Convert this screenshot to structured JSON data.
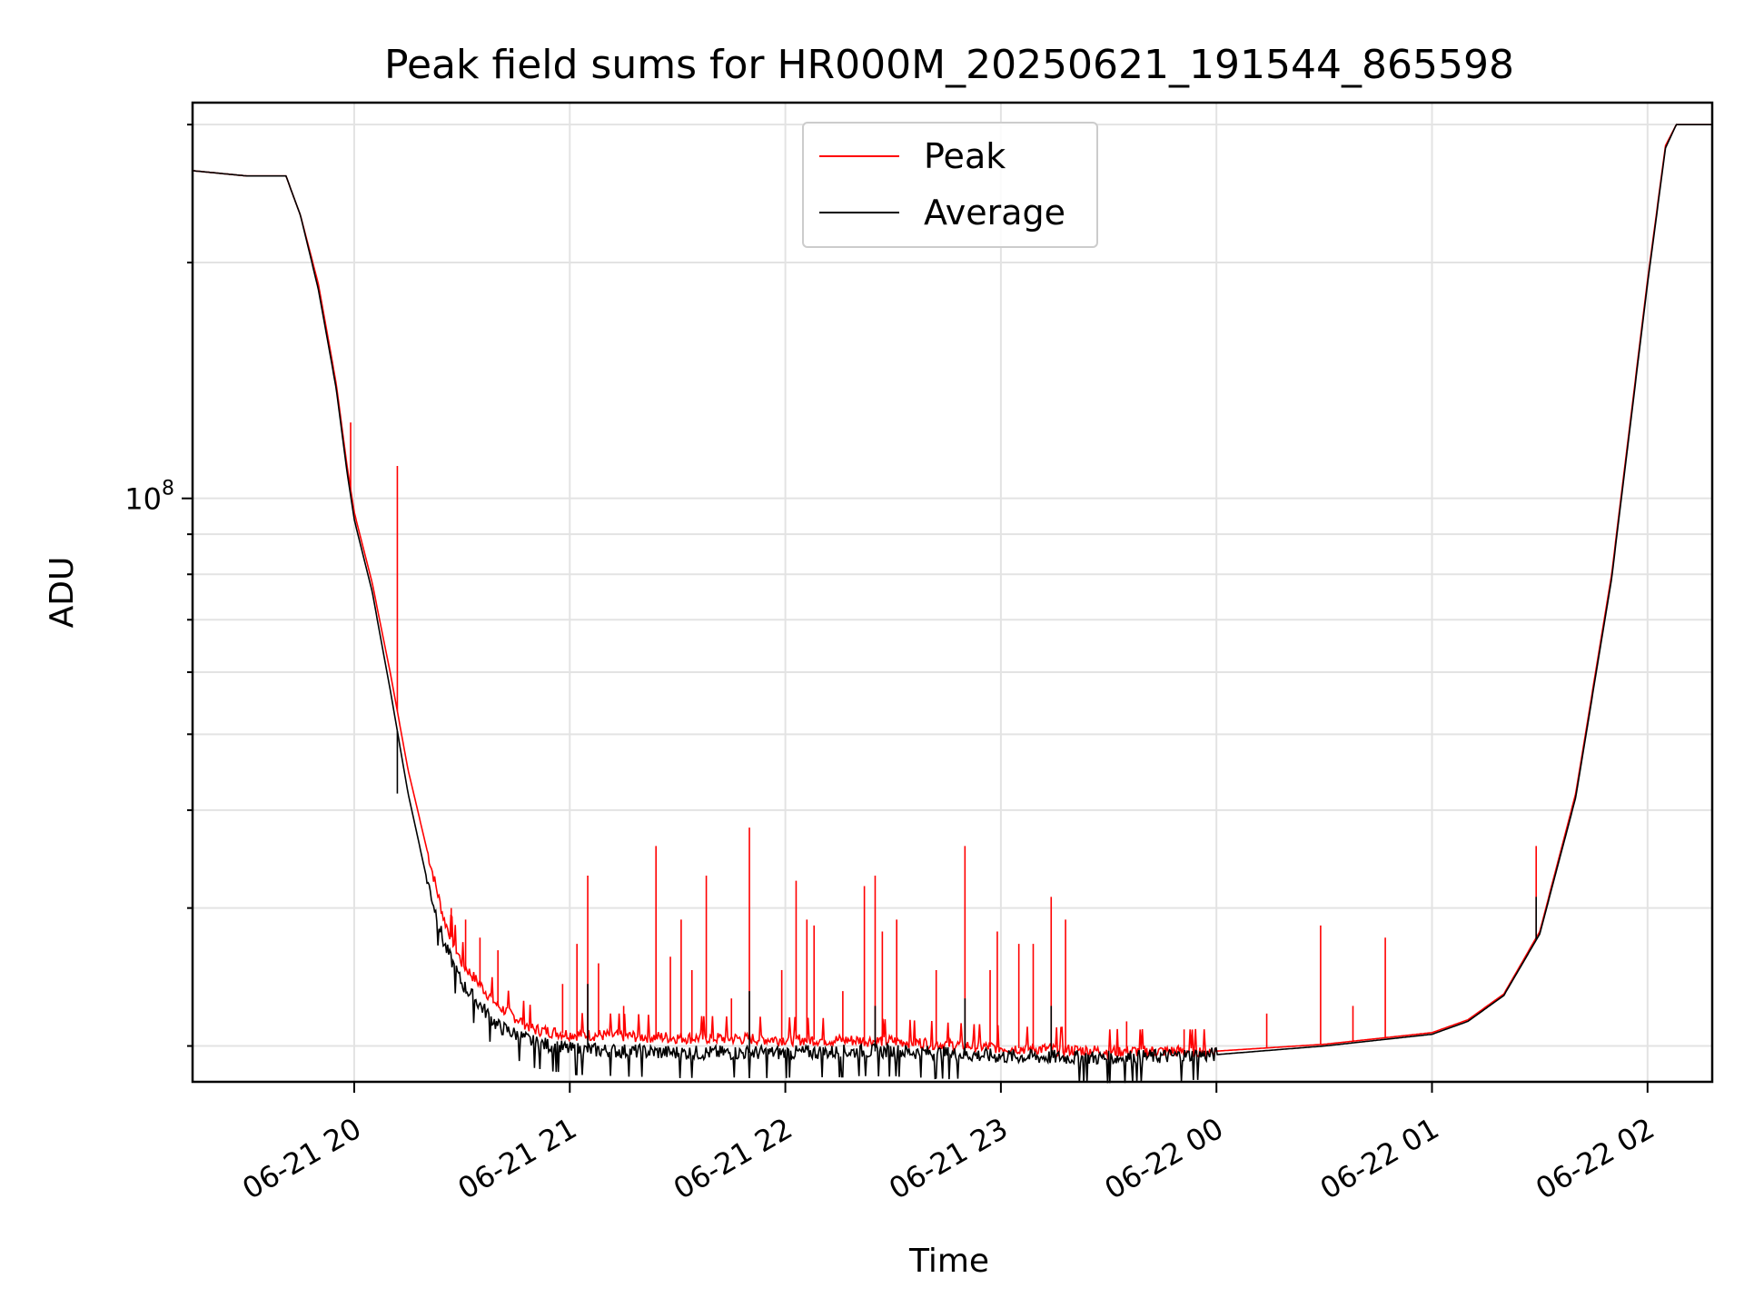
{
  "chart_data": {
    "type": "line",
    "title": "Peak field sums for HR000M_20250621_191544_865598",
    "xlabel": "Time",
    "ylabel": "ADU",
    "x_range": [
      "2025-06-21 19:15",
      "2025-06-22 02:18"
    ],
    "y_scale": "log",
    "y_range": [
      18000000,
      320000000
    ],
    "y_tick_labels": [
      {
        "value": 100000000,
        "base": "10",
        "exp": "8"
      }
    ],
    "x_tick_labels": [
      "06-21 20",
      "06-21 21",
      "06-21 22",
      "06-21 23",
      "06-22 00",
      "06-22 01",
      "06-22 02"
    ],
    "x_tick_values": [
      "2025-06-21 20:00",
      "2025-06-21 21:00",
      "2025-06-21 22:00",
      "2025-06-21 23:00",
      "2025-06-22 00:00",
      "2025-06-22 01:00",
      "2025-06-22 02:00"
    ],
    "grid": true,
    "legend_position": "top-center",
    "series": [
      {
        "name": "Peak",
        "color": "#ff0000",
        "base_points": [
          [
            "2025-06-21 19:15",
            262000000
          ],
          [
            "2025-06-21 19:30",
            258000000
          ],
          [
            "2025-06-21 19:41",
            258000000
          ],
          [
            "2025-06-21 19:45",
            230000000
          ],
          [
            "2025-06-21 19:50",
            188000000
          ],
          [
            "2025-06-21 19:55",
            140000000
          ],
          [
            "2025-06-21 19:58",
            110000000
          ],
          [
            "2025-06-21 20:00",
            96000000
          ],
          [
            "2025-06-21 20:05",
            78000000
          ],
          [
            "2025-06-21 20:10",
            60000000
          ],
          [
            "2025-06-21 20:15",
            45000000
          ],
          [
            "2025-06-21 20:20",
            36000000
          ],
          [
            "2025-06-21 20:25",
            29000000
          ],
          [
            "2025-06-21 20:30",
            25500000
          ],
          [
            "2025-06-21 20:40",
            22500000
          ],
          [
            "2025-06-21 20:50",
            21000000
          ],
          [
            "2025-06-21 21:00",
            20700000
          ],
          [
            "2025-06-21 21:30",
            20500000
          ],
          [
            "2025-06-21 22:00",
            20400000
          ],
          [
            "2025-06-21 22:30",
            20300000
          ],
          [
            "2025-06-21 23:00",
            19900000
          ],
          [
            "2025-06-21 23:30",
            19700000
          ],
          [
            "2025-06-22 00:00",
            19700000
          ],
          [
            "2025-06-22 00:30",
            20100000
          ],
          [
            "2025-06-22 01:00",
            20800000
          ],
          [
            "2025-06-22 01:10",
            21600000
          ],
          [
            "2025-06-22 01:20",
            23300000
          ],
          [
            "2025-06-22 01:30",
            28000000
          ],
          [
            "2025-06-22 01:40",
            42000000
          ],
          [
            "2025-06-22 01:50",
            80000000
          ],
          [
            "2025-06-22 02:00",
            190000000
          ],
          [
            "2025-06-22 02:05",
            282000000
          ],
          [
            "2025-06-22 02:08",
            300000000
          ],
          [
            "2025-06-22 02:18",
            300000000
          ]
        ],
        "spikes": [
          [
            "2025-06-21 19:59",
            125000000
          ],
          [
            "2025-06-21 20:12",
            110000000
          ],
          [
            "2025-06-21 20:22",
            33000000
          ],
          [
            "2025-06-21 20:27",
            30000000
          ],
          [
            "2025-06-21 20:31",
            29000000
          ],
          [
            "2025-06-21 20:35",
            27500000
          ],
          [
            "2025-06-21 20:40",
            26500000
          ],
          [
            "2025-06-21 20:58",
            24000000
          ],
          [
            "2025-06-21 21:02",
            27000000
          ],
          [
            "2025-06-21 21:05",
            33000000
          ],
          [
            "2025-06-21 21:08",
            25500000
          ],
          [
            "2025-06-21 21:15",
            22500000
          ],
          [
            "2025-06-21 21:24",
            36000000
          ],
          [
            "2025-06-21 21:28",
            26000000
          ],
          [
            "2025-06-21 21:31",
            29000000
          ],
          [
            "2025-06-21 21:34",
            25000000
          ],
          [
            "2025-06-21 21:38",
            33000000
          ],
          [
            "2025-06-21 21:45",
            23000000
          ],
          [
            "2025-06-21 21:50",
            38000000
          ],
          [
            "2025-06-21 21:59",
            25000000
          ],
          [
            "2025-06-21 22:03",
            32500000
          ],
          [
            "2025-06-21 22:06",
            29000000
          ],
          [
            "2025-06-21 22:08",
            28500000
          ],
          [
            "2025-06-21 22:16",
            23500000
          ],
          [
            "2025-06-21 22:22",
            32000000
          ],
          [
            "2025-06-21 22:25",
            33000000
          ],
          [
            "2025-06-21 22:27",
            28000000
          ],
          [
            "2025-06-21 22:31",
            29000000
          ],
          [
            "2025-06-21 22:42",
            25000000
          ],
          [
            "2025-06-21 22:50",
            36000000
          ],
          [
            "2025-06-21 22:57",
            25000000
          ],
          [
            "2025-06-21 22:59",
            28000000
          ],
          [
            "2025-06-21 23:05",
            27000000
          ],
          [
            "2025-06-21 23:09",
            27000000
          ],
          [
            "2025-06-21 23:14",
            31000000
          ],
          [
            "2025-06-21 23:18",
            29000000
          ],
          [
            "2025-06-21 23:35",
            21500000
          ],
          [
            "2025-06-21 23:51",
            21000000
          ],
          [
            "2025-06-22 00:14",
            22000000
          ],
          [
            "2025-06-22 00:29",
            28500000
          ],
          [
            "2025-06-22 00:38",
            22500000
          ],
          [
            "2025-06-22 00:47",
            27500000
          ],
          [
            "2025-06-22 01:29",
            36000000
          ]
        ]
      },
      {
        "name": "Average",
        "color": "#000000",
        "base_points": [
          [
            "2025-06-21 19:15",
            262000000
          ],
          [
            "2025-06-21 19:30",
            258000000
          ],
          [
            "2025-06-21 19:41",
            258000000
          ],
          [
            "2025-06-21 19:45",
            230000000
          ],
          [
            "2025-06-21 19:50",
            185000000
          ],
          [
            "2025-06-21 19:55",
            138000000
          ],
          [
            "2025-06-21 19:58",
            108000000
          ],
          [
            "2025-06-21 20:00",
            94000000
          ],
          [
            "2025-06-21 20:05",
            76000000
          ],
          [
            "2025-06-21 20:10",
            57000000
          ],
          [
            "2025-06-21 20:15",
            42000000
          ],
          [
            "2025-06-21 20:20",
            33000000
          ],
          [
            "2025-06-21 20:25",
            27000000
          ],
          [
            "2025-06-21 20:30",
            24000000
          ],
          [
            "2025-06-21 20:40",
            21200000
          ],
          [
            "2025-06-21 20:50",
            20200000
          ],
          [
            "2025-06-21 21:00",
            19800000
          ],
          [
            "2025-06-21 21:30",
            19600000
          ],
          [
            "2025-06-21 22:00",
            19600000
          ],
          [
            "2025-06-21 22:30",
            19700000
          ],
          [
            "2025-06-21 23:00",
            19400000
          ],
          [
            "2025-06-21 23:30",
            19300000
          ],
          [
            "2025-06-22 00:00",
            19500000
          ],
          [
            "2025-06-22 00:30",
            20000000
          ],
          [
            "2025-06-22 01:00",
            20700000
          ],
          [
            "2025-06-22 01:10",
            21500000
          ],
          [
            "2025-06-22 01:20",
            23200000
          ],
          [
            "2025-06-22 01:30",
            27800000
          ],
          [
            "2025-06-22 01:40",
            41500000
          ],
          [
            "2025-06-22 01:50",
            79000000
          ],
          [
            "2025-06-22 02:00",
            188000000
          ],
          [
            "2025-06-22 02:05",
            280000000
          ],
          [
            "2025-06-22 02:08",
            300000000
          ],
          [
            "2025-06-22 02:18",
            300000000
          ]
        ],
        "spikes": [
          [
            "2025-06-21 20:12",
            42000000
          ],
          [
            "2025-06-21 21:05",
            24000000
          ],
          [
            "2025-06-21 21:50",
            23500000
          ],
          [
            "2025-06-21 22:25",
            22500000
          ],
          [
            "2025-06-21 22:50",
            23000000
          ],
          [
            "2025-06-21 23:14",
            22500000
          ],
          [
            "2025-06-22 01:29",
            31000000
          ]
        ]
      }
    ]
  }
}
